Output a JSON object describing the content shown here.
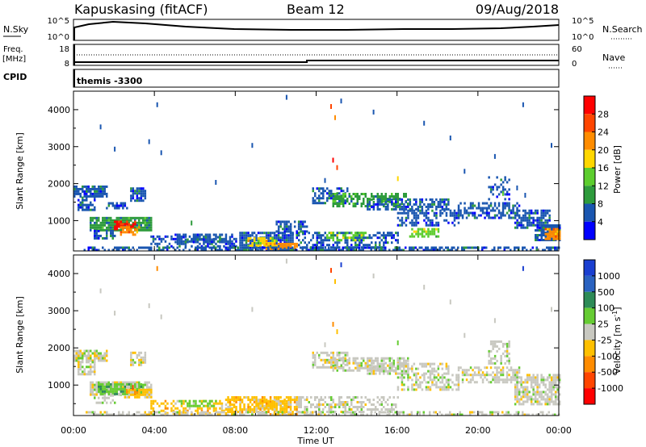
{
  "header": {
    "radar": "Kapuskasing (fitACF)",
    "beam": "Beam 12",
    "date": "09/Aug/2018"
  },
  "status_panels": {
    "nsky_label": "N.Sky",
    "nsearch_label": "N.Search",
    "noise_ticks": [
      "10^5",
      "10^0"
    ],
    "freq_label_1": "Freq.",
    "freq_label_2": "[MHz]",
    "freq_ticks": [
      "18",
      "8"
    ],
    "nave_label": "Nave",
    "nave_ticks": [
      "60",
      "0"
    ],
    "cpid_label": "CPID",
    "cpid_value": "themis -3300"
  },
  "colors": {
    "power": [
      "#0000ff",
      "#1a56b0",
      "#2e9b3c",
      "#5ccd2e",
      "#ffd700",
      "#ff8c00",
      "#ff4500",
      "#ff0000"
    ],
    "velocity": [
      "#1a3fd0",
      "#2a62c0",
      "#2e8b57",
      "#66cc33",
      "#c8c8c0",
      "#ffc000",
      "#ff8c00",
      "#ff4500",
      "#ff0000"
    ]
  },
  "chart_data": [
    {
      "type": "heatmap",
      "name": "power",
      "xlabel": "Time UT",
      "ylabel": "Slant Range [km]",
      "x_tick_labels": [
        "00:00",
        "04:00",
        "08:00",
        "12:00",
        "16:00",
        "20:00",
        "00:00"
      ],
      "y_ticks": [
        1000,
        2000,
        3000,
        4000
      ],
      "xlim": [
        0,
        24
      ],
      "ylim": [
        180,
        4500
      ],
      "colorbar": {
        "label": "Power [dB]",
        "ticks": [
          "4",
          "8",
          "12",
          "16",
          "20",
          "24",
          "28"
        ]
      },
      "patches": [
        {
          "t0": 0.0,
          "t1": 1.6,
          "r0": 1650,
          "r1": 1950,
          "c": 1,
          "d": 0.8
        },
        {
          "t0": 0.2,
          "t1": 1.0,
          "r0": 1300,
          "r1": 1650,
          "c": 1,
          "d": 0.6
        },
        {
          "t0": 1.6,
          "t1": 2.6,
          "r0": 1350,
          "r1": 1500,
          "c": 1,
          "d": 0.7
        },
        {
          "t0": 2.8,
          "t1": 3.5,
          "r0": 1550,
          "r1": 1900,
          "c": 1,
          "d": 0.8
        },
        {
          "t0": 0.8,
          "t1": 3.8,
          "r0": 750,
          "r1": 1100,
          "c": 2,
          "d": 0.9
        },
        {
          "t0": 2.0,
          "t1": 3.0,
          "r0": 800,
          "r1": 1000,
          "c": 7,
          "d": 0.7
        },
        {
          "t0": 2.3,
          "t1": 3.2,
          "r0": 650,
          "r1": 850,
          "c": 5,
          "d": 0.6
        },
        {
          "t0": 1.0,
          "t1": 2.0,
          "r0": 500,
          "r1": 750,
          "c": 1,
          "d": 0.6
        },
        {
          "t0": 3.8,
          "t1": 8.0,
          "r0": 300,
          "r1": 600,
          "c": 1,
          "d": 0.5
        },
        {
          "t0": 5.0,
          "t1": 7.8,
          "r0": 400,
          "r1": 650,
          "c": 1,
          "d": 0.7
        },
        {
          "t0": 8.2,
          "t1": 10.8,
          "r0": 200,
          "r1": 700,
          "c": 1,
          "d": 0.8
        },
        {
          "t0": 8.6,
          "t1": 10.0,
          "r0": 300,
          "r1": 550,
          "c": 4,
          "d": 0.7
        },
        {
          "t0": 9.5,
          "t1": 11.0,
          "r0": 250,
          "r1": 400,
          "c": 5,
          "d": 0.6
        },
        {
          "t0": 10.0,
          "t1": 11.5,
          "r0": 650,
          "r1": 1000,
          "c": 1,
          "d": 0.6
        },
        {
          "t0": 11.8,
          "t1": 13.5,
          "r0": 1500,
          "r1": 1900,
          "c": 1,
          "d": 0.6
        },
        {
          "t0": 12.8,
          "t1": 16.5,
          "r0": 1400,
          "r1": 1750,
          "c": 2,
          "d": 0.6
        },
        {
          "t0": 11.0,
          "t1": 16.0,
          "r0": 300,
          "r1": 700,
          "c": 1,
          "d": 0.5
        },
        {
          "t0": 12.5,
          "t1": 14.5,
          "r0": 500,
          "r1": 700,
          "c": 3,
          "d": 0.5
        },
        {
          "t0": 14.5,
          "t1": 18.5,
          "r0": 1300,
          "r1": 1600,
          "c": 1,
          "d": 0.6
        },
        {
          "t0": 16.0,
          "t1": 19.0,
          "r0": 900,
          "r1": 1300,
          "c": 1,
          "d": 0.5
        },
        {
          "t0": 16.5,
          "t1": 18.0,
          "r0": 550,
          "r1": 800,
          "c": 3,
          "d": 0.6
        },
        {
          "t0": 19.0,
          "t1": 22.0,
          "r0": 1100,
          "r1": 1500,
          "c": 1,
          "d": 0.5
        },
        {
          "t0": 20.5,
          "t1": 21.5,
          "r0": 1600,
          "r1": 2200,
          "c": 1,
          "d": 0.4
        },
        {
          "t0": 21.8,
          "t1": 23.5,
          "r0": 800,
          "r1": 1300,
          "c": 1,
          "d": 0.7
        },
        {
          "t0": 22.8,
          "t1": 24.0,
          "r0": 500,
          "r1": 900,
          "c": 1,
          "d": 0.8
        },
        {
          "t0": 23.3,
          "t1": 24.0,
          "r0": 500,
          "r1": 800,
          "c": 5,
          "d": 0.8
        },
        {
          "t0": 0.5,
          "t1": 24.0,
          "r0": 180,
          "r1": 300,
          "c": 1,
          "d": 0.6
        }
      ],
      "specks": [
        {
          "t": 12.7,
          "r": 4150,
          "c": 6
        },
        {
          "t": 12.9,
          "r": 3850,
          "c": 5
        },
        {
          "t": 13.2,
          "r": 4300,
          "c": 1
        },
        {
          "t": 12.8,
          "r": 2700,
          "c": 7
        },
        {
          "t": 13.0,
          "r": 2500,
          "c": 6
        },
        {
          "t": 12.4,
          "r": 2150,
          "c": 1
        },
        {
          "t": 4.1,
          "r": 4200,
          "c": 1
        },
        {
          "t": 4.3,
          "r": 2900,
          "c": 1
        },
        {
          "t": 3.7,
          "r": 3200,
          "c": 1
        },
        {
          "t": 1.3,
          "r": 3600,
          "c": 1
        },
        {
          "t": 2.0,
          "r": 3000,
          "c": 1
        },
        {
          "t": 14.8,
          "r": 4000,
          "c": 1
        },
        {
          "t": 17.3,
          "r": 3700,
          "c": 1
        },
        {
          "t": 18.6,
          "r": 3300,
          "c": 1
        },
        {
          "t": 22.2,
          "r": 4200,
          "c": 1
        },
        {
          "t": 23.6,
          "r": 3100,
          "c": 1
        },
        {
          "t": 8.8,
          "r": 3100,
          "c": 1
        },
        {
          "t": 10.5,
          "r": 4400,
          "c": 1
        },
        {
          "t": 16.0,
          "r": 2200,
          "c": 4
        },
        {
          "t": 19.3,
          "r": 2400,
          "c": 1
        },
        {
          "t": 20.8,
          "r": 2800,
          "c": 1
        },
        {
          "t": 7.0,
          "r": 2100,
          "c": 1
        },
        {
          "t": 5.8,
          "r": 1000,
          "c": 2
        },
        {
          "t": 21.2,
          "r": 1800,
          "c": 3
        },
        {
          "t": 21.9,
          "r": 1950,
          "c": 1
        },
        {
          "t": 22.3,
          "r": 1750,
          "c": 1
        }
      ]
    },
    {
      "type": "heatmap",
      "name": "velocity",
      "xlabel": "Time UT",
      "ylabel": "Slant Range [km]",
      "x_tick_labels": [
        "00:00",
        "04:00",
        "08:00",
        "12:00",
        "16:00",
        "20:00",
        "00:00"
      ],
      "y_ticks": [
        1000,
        2000,
        3000,
        4000
      ],
      "xlim": [
        0,
        24
      ],
      "ylim": [
        180,
        4500
      ],
      "colorbar": {
        "label": "Velocity [m s-1]",
        "ticks": [
          "1000",
          "500",
          "100",
          "25",
          "-25",
          "-100",
          "-500",
          "-1000"
        ]
      },
      "patches": [
        {
          "t0": 0.0,
          "t1": 1.6,
          "r0": 1650,
          "r1": 1950,
          "c": 4,
          "d": 0.8
        },
        {
          "t0": 0.2,
          "t1": 1.0,
          "r0": 1300,
          "r1": 1650,
          "c": 4,
          "d": 0.6
        },
        {
          "t0": 2.8,
          "t1": 3.5,
          "r0": 1550,
          "r1": 1900,
          "c": 4,
          "d": 0.7
        },
        {
          "t0": 0.8,
          "t1": 3.8,
          "r0": 750,
          "r1": 1100,
          "c": 4,
          "d": 0.8
        },
        {
          "t0": 1.2,
          "t1": 3.3,
          "r0": 750,
          "r1": 1050,
          "c": 3,
          "d": 0.8
        },
        {
          "t0": 2.5,
          "t1": 3.8,
          "r0": 700,
          "r1": 900,
          "c": 5,
          "d": 0.6
        },
        {
          "t0": 1.0,
          "t1": 2.0,
          "r0": 500,
          "r1": 750,
          "c": 4,
          "d": 0.5
        },
        {
          "t0": 3.8,
          "t1": 8.0,
          "r0": 250,
          "r1": 600,
          "c": 5,
          "d": 0.4
        },
        {
          "t0": 5.2,
          "t1": 7.0,
          "r0": 450,
          "r1": 600,
          "c": 3,
          "d": 0.5
        },
        {
          "t0": 7.5,
          "t1": 11.0,
          "r0": 200,
          "r1": 700,
          "c": 5,
          "d": 0.7
        },
        {
          "t0": 9.0,
          "t1": 10.5,
          "r0": 350,
          "r1": 600,
          "c": 5,
          "d": 0.8
        },
        {
          "t0": 11.8,
          "t1": 13.5,
          "r0": 1500,
          "r1": 1900,
          "c": 4,
          "d": 0.6
        },
        {
          "t0": 12.8,
          "t1": 16.5,
          "r0": 1400,
          "r1": 1750,
          "c": 4,
          "d": 0.6
        },
        {
          "t0": 11.0,
          "t1": 16.0,
          "r0": 300,
          "r1": 700,
          "c": 4,
          "d": 0.5
        },
        {
          "t0": 14.5,
          "t1": 18.5,
          "r0": 1300,
          "r1": 1600,
          "c": 4,
          "d": 0.6
        },
        {
          "t0": 16.0,
          "t1": 19.0,
          "r0": 900,
          "r1": 1300,
          "c": 4,
          "d": 0.5
        },
        {
          "t0": 19.0,
          "t1": 22.0,
          "r0": 1100,
          "r1": 1500,
          "c": 4,
          "d": 0.5
        },
        {
          "t0": 20.5,
          "t1": 21.5,
          "r0": 1600,
          "r1": 2200,
          "c": 4,
          "d": 0.4
        },
        {
          "t0": 21.8,
          "t1": 24.0,
          "r0": 500,
          "r1": 1300,
          "c": 4,
          "d": 0.7
        },
        {
          "t0": 0.5,
          "t1": 24.0,
          "r0": 180,
          "r1": 300,
          "c": 4,
          "d": 0.5
        }
      ],
      "specks": [
        {
          "t": 12.7,
          "r": 4150,
          "c": 7
        },
        {
          "t": 12.9,
          "r": 3850,
          "c": 5
        },
        {
          "t": 13.2,
          "r": 4300,
          "c": 0
        },
        {
          "t": 12.8,
          "r": 2700,
          "c": 6
        },
        {
          "t": 13.0,
          "r": 2500,
          "c": 5
        },
        {
          "t": 12.4,
          "r": 2150,
          "c": 4
        },
        {
          "t": 4.1,
          "r": 4200,
          "c": 6
        },
        {
          "t": 4.3,
          "r": 2900,
          "c": 4
        },
        {
          "t": 3.7,
          "r": 3200,
          "c": 4
        },
        {
          "t": 1.3,
          "r": 3600,
          "c": 4
        },
        {
          "t": 2.0,
          "r": 3000,
          "c": 4
        },
        {
          "t": 14.8,
          "r": 4000,
          "c": 4
        },
        {
          "t": 17.3,
          "r": 3700,
          "c": 4
        },
        {
          "t": 18.6,
          "r": 3300,
          "c": 4
        },
        {
          "t": 22.2,
          "r": 4200,
          "c": 0
        },
        {
          "t": 23.6,
          "r": 3100,
          "c": 4
        },
        {
          "t": 8.8,
          "r": 3100,
          "c": 4
        },
        {
          "t": 10.5,
          "r": 4400,
          "c": 4
        },
        {
          "t": 16.0,
          "r": 2200,
          "c": 3
        },
        {
          "t": 19.3,
          "r": 2400,
          "c": 4
        },
        {
          "t": 20.8,
          "r": 2800,
          "c": 4
        },
        {
          "t": 2.6,
          "r": 900,
          "c": 6
        },
        {
          "t": 2.9,
          "r": 1000,
          "c": 7
        },
        {
          "t": 3.0,
          "r": 850,
          "c": 6
        }
      ]
    }
  ]
}
